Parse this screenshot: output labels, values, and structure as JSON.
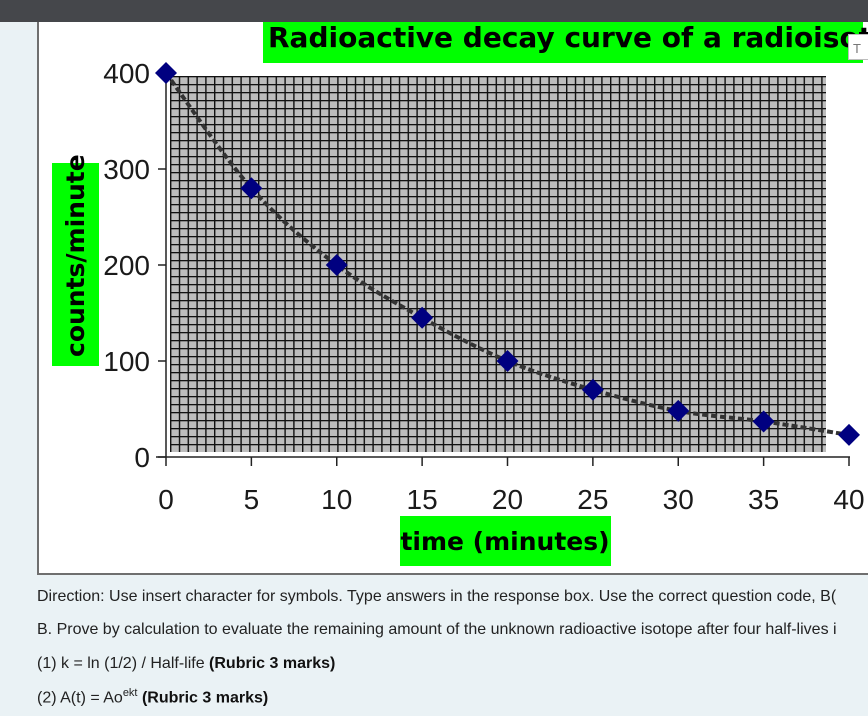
{
  "chart_data": {
    "type": "scatter",
    "title": "Radioactive decay curve of a radioisotope",
    "xlabel": "time (minutes)",
    "ylabel": "counts/minute",
    "xlim": [
      0,
      40
    ],
    "ylim": [
      0,
      400
    ],
    "x_ticks": [
      "0",
      "5",
      "10",
      "15",
      "20",
      "25",
      "30",
      "35",
      "40"
    ],
    "y_ticks": [
      "0",
      "100",
      "200",
      "300",
      "400"
    ],
    "points": [
      {
        "x": 0,
        "y": 400
      },
      {
        "x": 5,
        "y": 280
      },
      {
        "x": 10,
        "y": 200
      },
      {
        "x": 15,
        "y": 145
      },
      {
        "x": 20,
        "y": 100
      },
      {
        "x": 25,
        "y": 70
      },
      {
        "x": 30,
        "y": 48
      },
      {
        "x": 35,
        "y": 37
      },
      {
        "x": 40,
        "y": 23
      }
    ],
    "trendline": "smooth curve",
    "grid": true,
    "colors": {
      "plot_bg": "#bdbdbd",
      "grid": "#111111",
      "marker": "#000080",
      "label_bg": "#00ff00"
    }
  },
  "stub_box": {
    "text": "T"
  },
  "texts": {
    "direction": "Direction: Use insert character for symbols. Type answers in the response box. Use the correct question code, B(",
    "question_b": "B. Prove by calculation to evaluate the remaining amount of the unknown radioactive isotope after four half-lives i",
    "formula1_text": "(1) k = ln (1/2) / Half-life ",
    "formula1_rubric": "(Rubric 3 marks)",
    "formula2_text": "(2) A(t) = Ao",
    "formula2_sup": "ekt",
    "formula2_rubric": "(Rubric 3 marks)"
  }
}
